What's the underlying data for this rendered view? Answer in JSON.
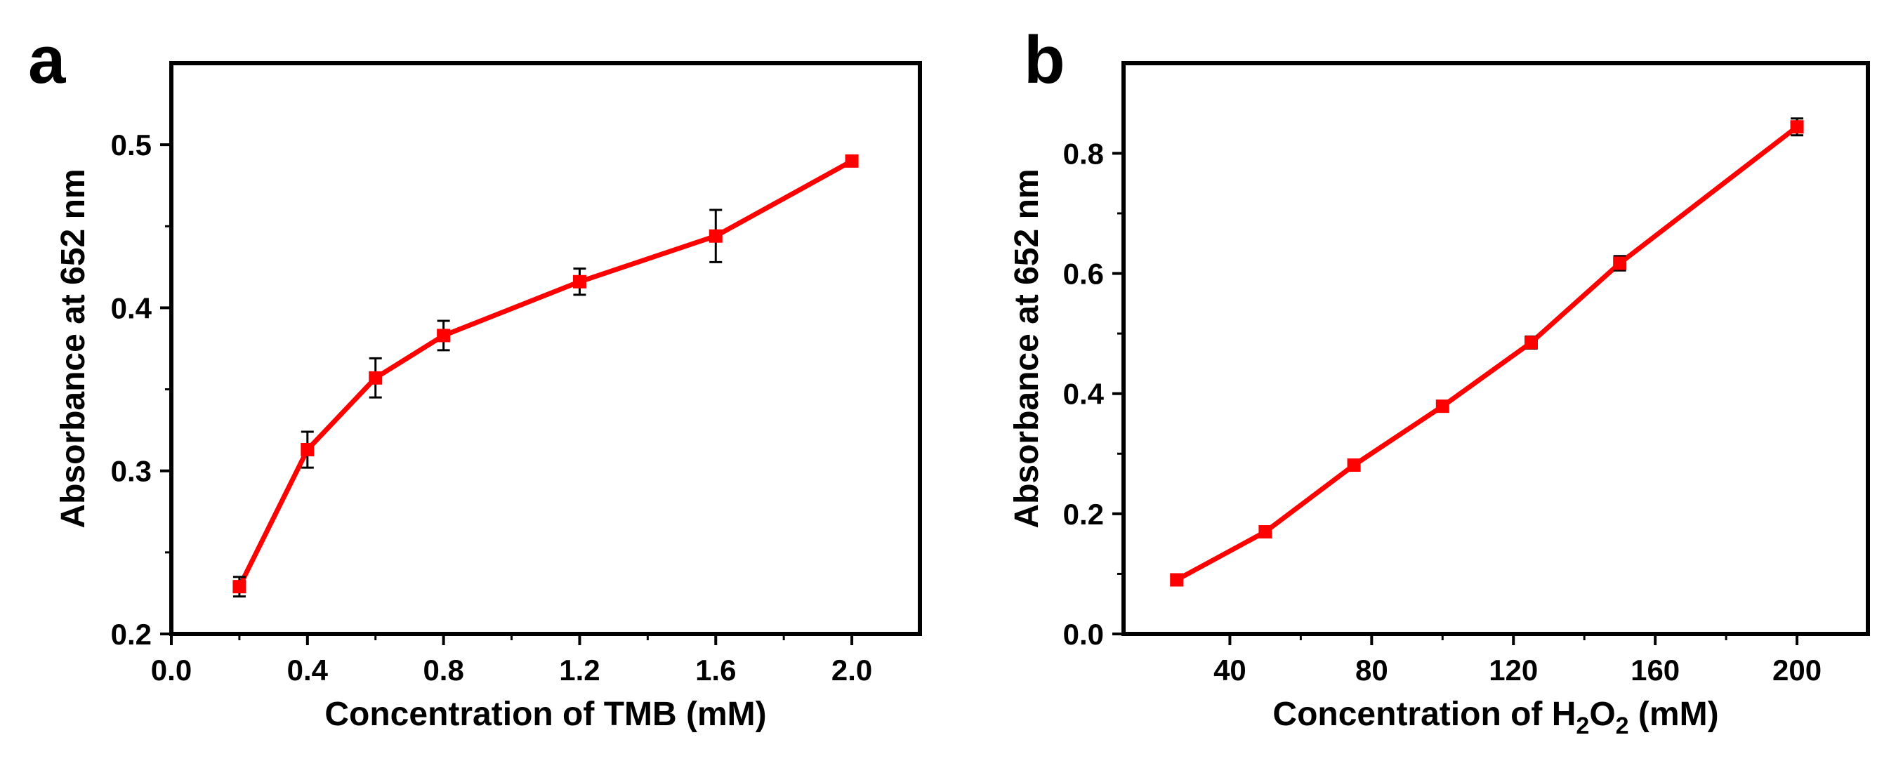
{
  "figure": {
    "line_color": "#ff0000",
    "marker_color": "#ff0000",
    "error_bar_color": "#000000",
    "axis_color": "#000000"
  },
  "chart_data": [
    {
      "panel_label": "a",
      "type": "line",
      "xlabel": "Concentration of TMB (mM)",
      "ylabel": "Absorbance at 652 nm",
      "xlim": [
        0.0,
        2.2
      ],
      "ylim": [
        0.2,
        0.55
      ],
      "xticks": [
        0.0,
        0.4,
        0.8,
        1.2,
        1.6,
        2.0
      ],
      "xtick_labels": [
        "0.0",
        "0.4",
        "0.8",
        "1.2",
        "1.6",
        "2.0"
      ],
      "yticks": [
        0.2,
        0.3,
        0.4,
        0.5
      ],
      "ytick_labels": [
        "0.2",
        "0.3",
        "0.4",
        "0.5"
      ],
      "grid": false,
      "series": [
        {
          "name": "TMB",
          "x": [
            0.2,
            0.4,
            0.6,
            0.8,
            1.2,
            1.6,
            2.0
          ],
          "y": [
            0.229,
            0.313,
            0.357,
            0.383,
            0.416,
            0.444,
            0.49
          ],
          "yerr": [
            0.006,
            0.011,
            0.012,
            0.009,
            0.008,
            0.016,
            0.003
          ]
        }
      ]
    },
    {
      "panel_label": "b",
      "type": "line",
      "xlabel_main": "Concentration of H",
      "xlabel_sub1": "2",
      "xlabel_mid": "O",
      "xlabel_sub2": "2",
      "xlabel_tail": " (mM)",
      "ylabel": "Absorbance at 652 nm",
      "xlim": [
        10,
        220
      ],
      "ylim": [
        0.0,
        0.95
      ],
      "xticks": [
        40,
        80,
        120,
        160,
        200
      ],
      "xtick_labels": [
        "40",
        "80",
        "120",
        "160",
        "200"
      ],
      "yticks": [
        0.0,
        0.2,
        0.4,
        0.6,
        0.8
      ],
      "ytick_labels": [
        "0.0",
        "0.2",
        "0.4",
        "0.6",
        "0.8"
      ],
      "grid": false,
      "series": [
        {
          "name": "H2O2",
          "x": [
            25,
            50,
            75,
            100,
            125,
            150,
            200
          ],
          "y": [
            0.09,
            0.17,
            0.281,
            0.379,
            0.485,
            0.617,
            0.844
          ],
          "yerr": [
            0.007,
            0.006,
            0.007,
            0.008,
            0.01,
            0.012,
            0.014
          ]
        }
      ]
    }
  ]
}
